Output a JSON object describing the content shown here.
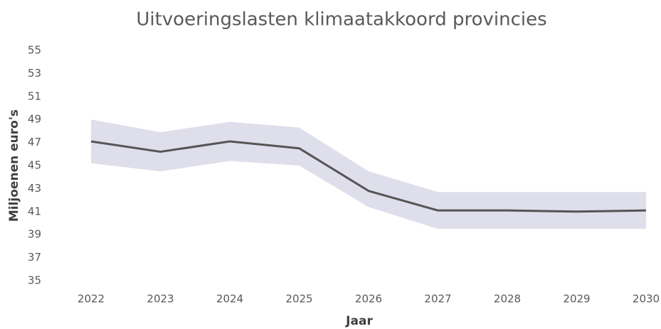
{
  "chart_data": {
    "type": "line",
    "title": "Uitvoeringslasten klimaatakkoord provincies",
    "xlabel": "Jaar",
    "ylabel": "Miljoenen euro's",
    "categories": [
      "2022",
      "2023",
      "2024",
      "2025",
      "2026",
      "2027",
      "2028",
      "2029",
      "2030"
    ],
    "series": [
      {
        "color": "#555555",
        "values": [
          47.1,
          46.2,
          47.1,
          46.5,
          42.8,
          41.1,
          41.1,
          41.0,
          41.1
        ]
      }
    ],
    "band": {
      "color": "#dfdeeb",
      "upper": [
        49.0,
        47.9,
        48.8,
        48.3,
        44.5,
        42.7,
        42.7,
        42.7,
        42.7
      ],
      "lower": [
        45.2,
        44.5,
        45.4,
        45.0,
        41.4,
        39.5,
        39.5,
        39.5,
        39.5
      ]
    },
    "ylim": [
      35,
      55
    ],
    "yticks": [
      35,
      37,
      39,
      41,
      43,
      45,
      47,
      49,
      51,
      53,
      55
    ],
    "grid": false
  }
}
